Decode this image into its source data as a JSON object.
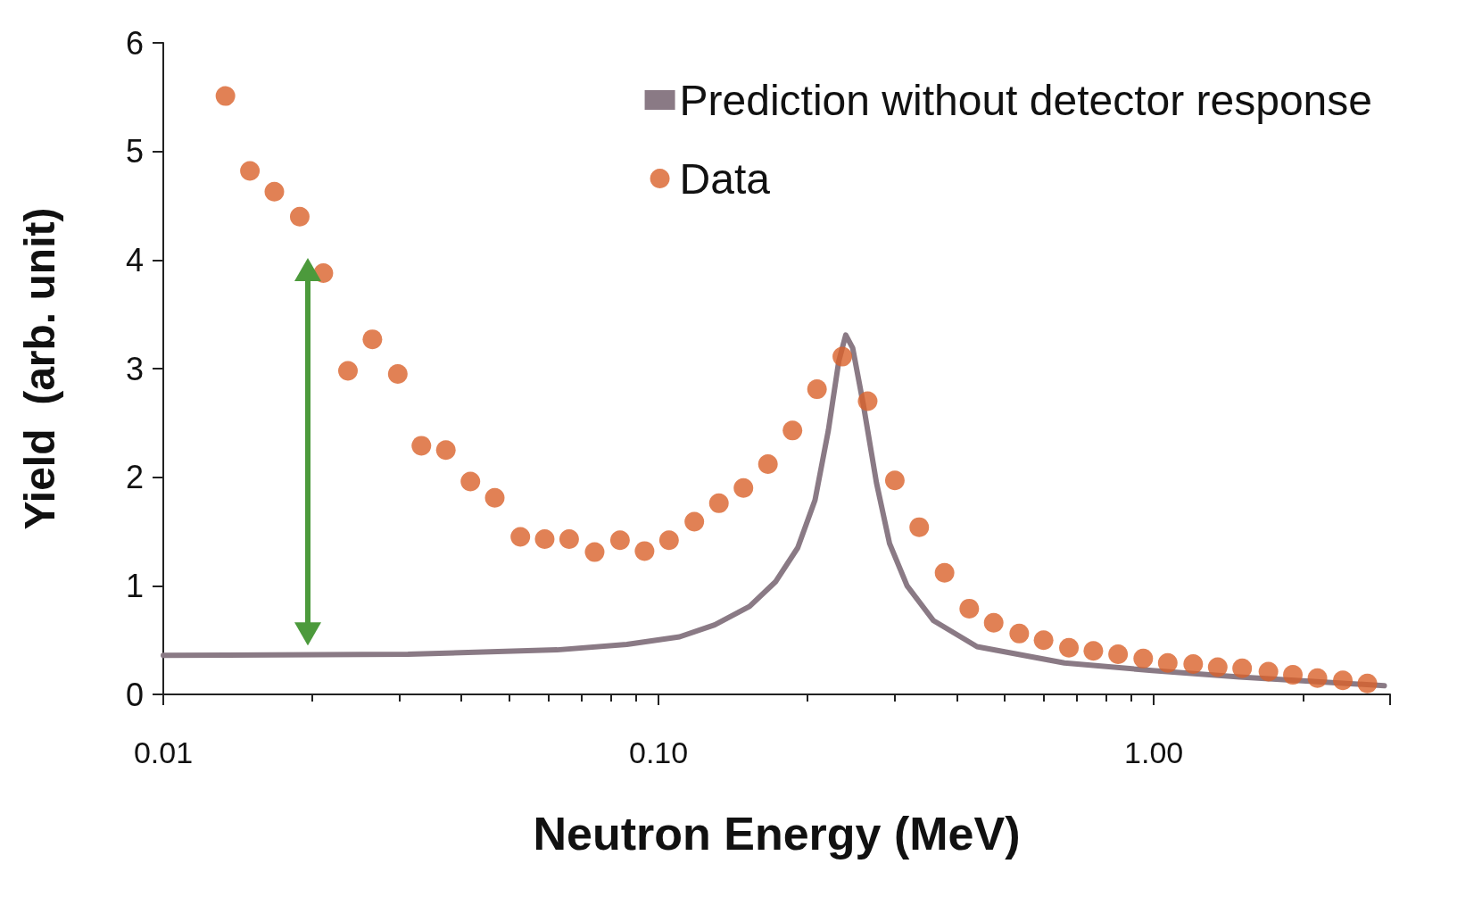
{
  "chart_data": {
    "type": "scatter",
    "xlabel": "Neutron Energy (MeV)",
    "ylabel": "Yield  (arb. unit)",
    "log": "x",
    "xlim": [
      0.01,
      3
    ],
    "ylim": [
      0,
      6
    ],
    "xticks": [
      0.01,
      {
        "value": 0.1,
        "label": "0.10"
      },
      {
        "value": 1,
        "label": "1.00"
      }
    ],
    "yticks": [
      0,
      1,
      2,
      3,
      4,
      5,
      6
    ],
    "grid": false,
    "legend": "top right",
    "marker": "circle",
    "series": [
      {
        "name": "Prediction without detector response",
        "type": "line",
        "marker": "none",
        "line_style": "solid",
        "color": "#8a7a85",
        "x": [
          0.01,
          0.0312,
          0.0624,
          0.0863,
          0.1103,
          0.1298,
          0.1527,
          0.1725,
          0.191,
          0.207,
          0.2202,
          0.2312,
          0.2388,
          0.2466,
          0.2591,
          0.2754,
          0.2927,
          0.3176,
          0.3589,
          0.4396,
          0.66,
          0.992,
          1.49,
          2.92
        ],
        "values": [
          0.36,
          0.37,
          0.41,
          0.46,
          0.53,
          0.64,
          0.81,
          1.04,
          1.35,
          1.79,
          2.43,
          3.07,
          3.31,
          3.19,
          2.67,
          1.95,
          1.39,
          1.0,
          0.68,
          0.44,
          0.29,
          0.22,
          0.16,
          0.08
        ]
      },
      {
        "name": "Data",
        "color": "#d9622b",
        "x": [
          0.01335,
          0.01496,
          0.01676,
          0.01886,
          0.02105,
          0.0236,
          0.02644,
          0.02975,
          0.0332,
          0.0372,
          0.0417,
          0.0467,
          0.0526,
          0.0589,
          0.066,
          0.0743,
          0.0836,
          0.0937,
          0.105,
          0.1181,
          0.1324,
          0.1484,
          0.1663,
          0.1864,
          0.2089,
          0.235,
          0.2644,
          0.3,
          0.336,
          0.378,
          0.424,
          0.475,
          0.535,
          0.599,
          0.674,
          0.755,
          0.847,
          0.952,
          1.067,
          1.201,
          1.346,
          1.508,
          1.704,
          1.909,
          2.14,
          2.408,
          2.699
        ],
        "values": [
          5.51,
          4.82,
          4.63,
          4.4,
          3.88,
          2.98,
          3.27,
          2.95,
          2.29,
          2.25,
          1.96,
          1.81,
          1.45,
          1.43,
          1.43,
          1.31,
          1.42,
          1.32,
          1.42,
          1.59,
          1.76,
          1.9,
          2.12,
          2.43,
          2.81,
          3.11,
          2.7,
          1.97,
          1.54,
          1.12,
          0.79,
          0.66,
          0.56,
          0.5,
          0.43,
          0.4,
          0.37,
          0.33,
          0.29,
          0.28,
          0.25,
          0.24,
          0.21,
          0.18,
          0.15,
          0.13,
          0.1
        ]
      }
    ]
  }
}
